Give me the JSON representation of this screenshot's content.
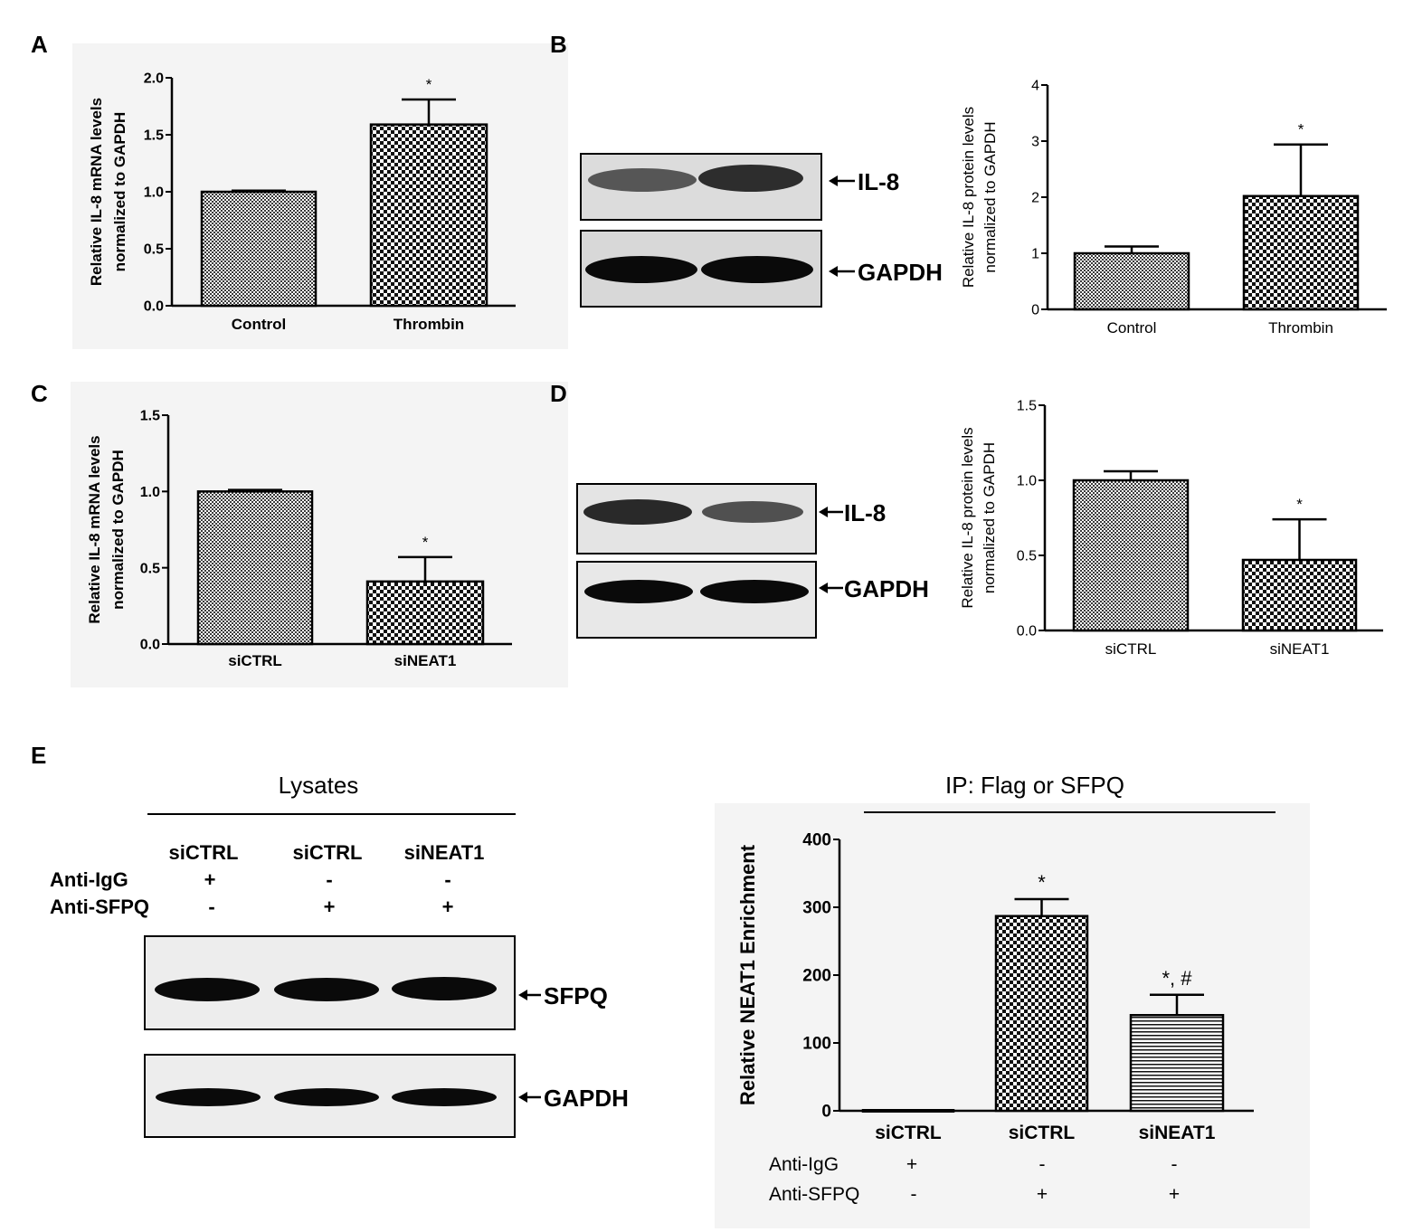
{
  "panels": {
    "A": "A",
    "B": "B",
    "C": "C",
    "D": "D",
    "E": "E"
  },
  "blots": {
    "B": {
      "band1": "IL-8",
      "band2": "GAPDH"
    },
    "D": {
      "band1": "IL-8",
      "band2": "GAPDH"
    },
    "E": {
      "header": "Lysates",
      "columns": [
        "siCTRL",
        "siCTRL",
        "siNEAT1"
      ],
      "rows": [
        {
          "label": "Anti-IgG",
          "values": [
            "+",
            "-",
            "-"
          ]
        },
        {
          "label": "Anti-SFPQ",
          "values": [
            "-",
            "+",
            "+"
          ]
        }
      ],
      "band1": "SFPQ",
      "band2": "GAPDH"
    }
  },
  "chart_data": [
    {
      "panel": "A",
      "type": "bar",
      "categories": [
        "Control",
        "Thrombin"
      ],
      "values": [
        1.0,
        1.59
      ],
      "errors": [
        0.01,
        0.22
      ],
      "significance": [
        "",
        "*"
      ],
      "ylabel": "Relative IL-8 mRNA levels normalized to GAPDH",
      "ylabel_lines": [
        "Relative IL-8 mRNA levels",
        "normalized to GAPDH"
      ],
      "ylim": [
        0,
        2.0
      ],
      "yticks": [
        "0.0",
        "0.5",
        "1.0",
        "1.5",
        "2.0"
      ],
      "bar_patterns": [
        "fine",
        "coarse"
      ]
    },
    {
      "panel": "B",
      "type": "bar",
      "categories": [
        "Control",
        "Thrombin"
      ],
      "values": [
        1.0,
        2.02
      ],
      "errors": [
        0.12,
        0.92
      ],
      "significance": [
        "",
        "*"
      ],
      "ylabel": "Relative IL-8 protein levels normalized to GAPDH",
      "ylabel_lines": [
        "Relative IL-8 protein levels",
        "normalized to GAPDH"
      ],
      "ylim": [
        0,
        4
      ],
      "yticks": [
        "0",
        "1",
        "2",
        "3",
        "4"
      ],
      "bar_patterns": [
        "fine",
        "coarse"
      ]
    },
    {
      "panel": "C",
      "type": "bar",
      "categories": [
        "siCTRL",
        "siNEAT1"
      ],
      "values": [
        1.0,
        0.41
      ],
      "errors": [
        0.01,
        0.16
      ],
      "significance": [
        "",
        "*"
      ],
      "ylabel": "Relative IL-8 mRNA levels normalized to GAPDH",
      "ylabel_lines": [
        "Relative IL-8 mRNA levels",
        "normalized to GAPDH"
      ],
      "ylim": [
        0,
        1.5
      ],
      "yticks": [
        "0.0",
        "0.5",
        "1.0",
        "1.5"
      ],
      "bar_patterns": [
        "fine",
        "coarse"
      ]
    },
    {
      "panel": "D",
      "type": "bar",
      "categories": [
        "siCTRL",
        "siNEAT1"
      ],
      "values": [
        1.0,
        0.47
      ],
      "errors": [
        0.06,
        0.27
      ],
      "significance": [
        "",
        "*"
      ],
      "ylabel": "Relative IL-8 protein levels normalized to GAPDH",
      "ylabel_lines": [
        "Relative IL-8 protein levels",
        "normalized to GAPDH"
      ],
      "ylim": [
        0,
        1.5
      ],
      "yticks": [
        "0.0",
        "0.5",
        "1.0",
        "1.5"
      ],
      "bar_patterns": [
        "fine",
        "coarse"
      ]
    },
    {
      "panel": "E",
      "type": "bar",
      "title": "IP: Flag or SFPQ",
      "categories": [
        "siCTRL",
        "siCTRL",
        "siNEAT1"
      ],
      "values": [
        1,
        287,
        141
      ],
      "errors": [
        0,
        25,
        30
      ],
      "significance": [
        "",
        "*",
        "*, #"
      ],
      "ylabel": "Relative NEAT1 Enrichment",
      "ylim": [
        0,
        400
      ],
      "yticks": [
        "0",
        "100",
        "200",
        "300",
        "400"
      ],
      "bar_patterns": [
        "coarse",
        "coarse",
        "hlines"
      ],
      "conditions": [
        {
          "label": "Anti-IgG",
          "values": [
            "+",
            "-",
            "-"
          ]
        },
        {
          "label": "Anti-SFPQ",
          "values": [
            "-",
            "+",
            "+"
          ]
        }
      ]
    }
  ]
}
